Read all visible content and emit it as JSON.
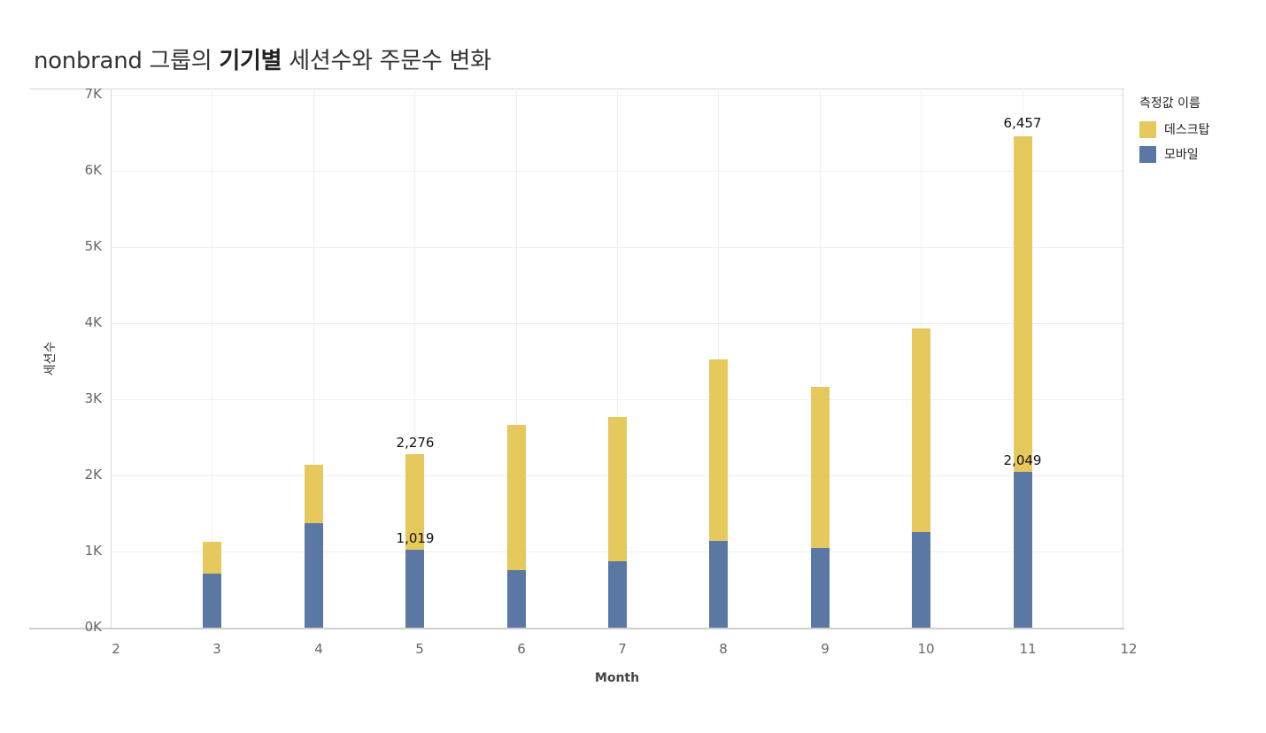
{
  "header": {
    "title_prefix": "nonbrand 그룹의 ",
    "title_bold": "기기별",
    "title_suffix": " 세션수와 주문수 변화"
  },
  "legend": {
    "title": "측정값 이름",
    "items": [
      {
        "label": "데스크탑",
        "color": "#e6c95d"
      },
      {
        "label": "모바일",
        "color": "#5a78a3"
      }
    ]
  },
  "axes": {
    "ylabel": "세션수",
    "xlabel": "Month",
    "yticks": [
      "0K",
      "1K",
      "2K",
      "3K",
      "4K",
      "5K",
      "6K",
      "7K"
    ],
    "xticks": [
      "2",
      "3",
      "4",
      "5",
      "6",
      "7",
      "8",
      "9",
      "10",
      "11",
      "12"
    ]
  },
  "labels": {
    "m5_desktop": "2,276",
    "m5_mobile": "1,019",
    "m11_desktop": "6,457",
    "m11_mobile": "2,049"
  },
  "chart_data": {
    "type": "bar",
    "title": "nonbrand 그룹의 기기별 세션수와 주문수 변화",
    "xlabel": "Month",
    "ylabel": "세션수",
    "categories": [
      3,
      4,
      5,
      6,
      7,
      8,
      9,
      10,
      11
    ],
    "series": [
      {
        "name": "데스크탑",
        "color": "#e6c95d",
        "values": [
          1130,
          2140,
          2276,
          2660,
          2770,
          3520,
          3160,
          3930,
          6457
        ]
      },
      {
        "name": "모바일",
        "color": "#5a78a3",
        "values": [
          710,
          1370,
          1019,
          760,
          870,
          1140,
          1050,
          1260,
          2049
        ]
      }
    ],
    "bar_mode": "overlay",
    "xlim": [
      2,
      12
    ],
    "ylim": [
      0,
      7000
    ],
    "yticks": [
      0,
      1000,
      2000,
      3000,
      4000,
      5000,
      6000,
      7000
    ],
    "ytick_labels": [
      "0K",
      "1K",
      "2K",
      "3K",
      "4K",
      "5K",
      "6K",
      "7K"
    ],
    "grid": true,
    "legend_title": "측정값 이름",
    "legend_position": "right",
    "annotations": [
      {
        "x": 5,
        "series": "데스크탑",
        "text": "2,276"
      },
      {
        "x": 5,
        "series": "모바일",
        "text": "1,019"
      },
      {
        "x": 11,
        "series": "데스크탑",
        "text": "6,457"
      },
      {
        "x": 11,
        "series": "모바일",
        "text": "2,049"
      }
    ]
  }
}
